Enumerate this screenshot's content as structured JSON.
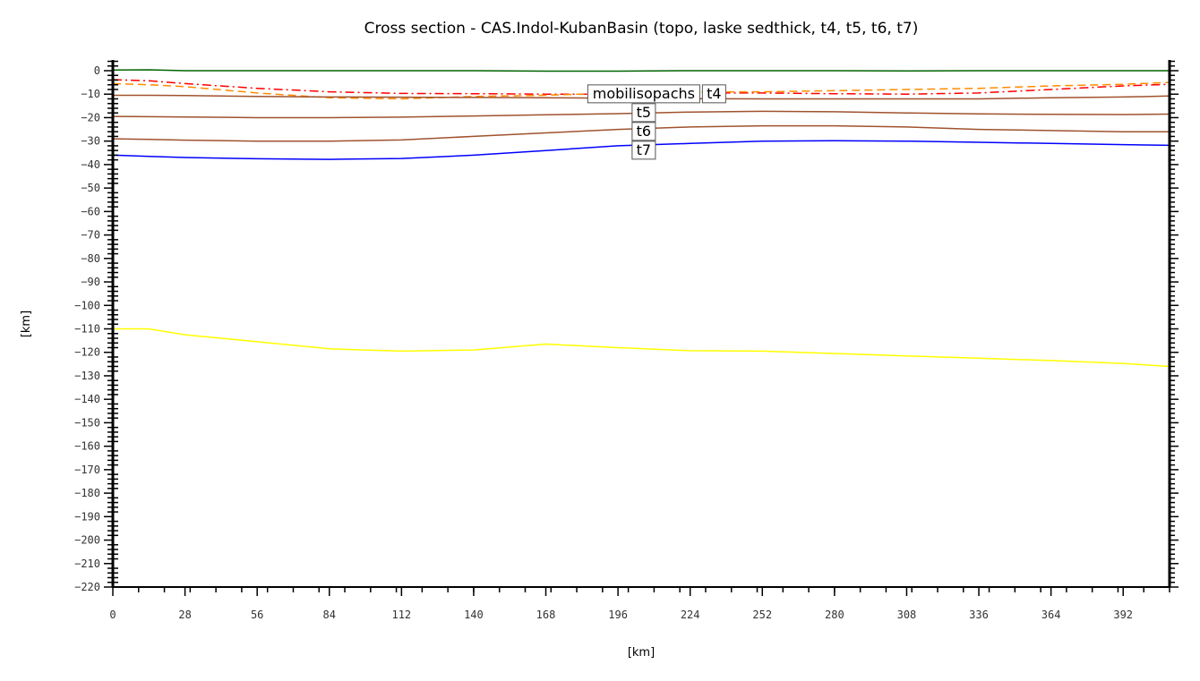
{
  "chart_data": {
    "type": "line",
    "title": "Cross section - CAS.Indol-KubanBasin (topo, laske sedthick, t4, t5, t6, t7)",
    "xlabel": "[km]",
    "ylabel": "[km]",
    "xlim": [
      0,
      410
    ],
    "ylim": [
      -220,
      0
    ],
    "xticks": [
      0,
      28,
      56,
      84,
      112,
      140,
      168,
      196,
      224,
      252,
      280,
      308,
      336,
      364,
      392
    ],
    "yticks": [
      0,
      -10,
      -20,
      -30,
      -40,
      -50,
      -60,
      -70,
      -80,
      -90,
      -100,
      -110,
      -120,
      -130,
      -140,
      -150,
      -160,
      -170,
      -180,
      -190,
      -200,
      -210,
      -220
    ],
    "grid": false,
    "x": [
      0,
      14,
      28,
      56,
      84,
      112,
      140,
      168,
      196,
      224,
      252,
      280,
      308,
      336,
      364,
      392,
      410
    ],
    "series": [
      {
        "color": "#006400",
        "style": "solid",
        "values": [
          0.3,
          0.4,
          0,
          0,
          0,
          0,
          0,
          -0.2,
          -0.2,
          0,
          0,
          0,
          -0.1,
          0,
          0,
          0,
          0
        ]
      },
      {
        "color": "#ff0000",
        "style": "dashdot",
        "values": [
          -3.8,
          -4.3,
          -5.5,
          -7.5,
          -9,
          -9.7,
          -9.8,
          -10,
          -10,
          -9.5,
          -9.5,
          -9.8,
          -10,
          -9.5,
          -8,
          -6.5,
          -5.8
        ]
      },
      {
        "color": "#ff8c00",
        "style": "dashed",
        "values": [
          -5.5,
          -6,
          -6.8,
          -9.5,
          -11.5,
          -12,
          -11,
          -10.5,
          -9.5,
          -9,
          -9,
          -8.5,
          -8,
          -7.5,
          -6.5,
          -5.8,
          -5
        ]
      },
      {
        "color": "#a0522d",
        "style": "solid",
        "values": [
          -10.5,
          -10.5,
          -10.6,
          -11,
          -11.2,
          -11.3,
          -11.4,
          -11.5,
          -11.7,
          -11.9,
          -12,
          -12,
          -12,
          -12,
          -11.5,
          -11.2,
          -10.8
        ]
      },
      {
        "color": "#a0522d",
        "style": "solid",
        "values": [
          -19.5,
          -19.6,
          -19.7,
          -20,
          -20,
          -19.8,
          -19.3,
          -18.8,
          -18.3,
          -17.6,
          -17.3,
          -17.5,
          -18,
          -18.4,
          -18.6,
          -18.7,
          -18.5
        ]
      },
      {
        "color": "#a0522d",
        "style": "solid",
        "values": [
          -29,
          -29.3,
          -29.6,
          -30,
          -30,
          -29.5,
          -28,
          -26.5,
          -25,
          -24,
          -23.5,
          -23.5,
          -24,
          -25,
          -25.5,
          -26,
          -26
        ]
      },
      {
        "color": "#0000ff",
        "style": "solid",
        "values": [
          -36,
          -36.5,
          -37,
          -37.5,
          -37.8,
          -37.4,
          -36,
          -34,
          -32,
          -31,
          -30,
          -29.8,
          -30,
          -30.5,
          -31,
          -31.5,
          -31.8
        ]
      },
      {
        "color": "#ffff00",
        "style": "solid",
        "values": [
          -110,
          -110,
          -112.5,
          -115.5,
          -118.5,
          -119.5,
          -119,
          -116.5,
          -118,
          -119.3,
          -119.5,
          -120.5,
          -121.5,
          -122.5,
          -123.5,
          -124.7,
          -126
        ]
      }
    ],
    "annotations": [
      {
        "text": "mobilisopachs",
        "x": 206,
        "y": -11
      },
      {
        "text": "t4",
        "x": 206,
        "y": -11
      },
      {
        "text": "t5",
        "x": 206,
        "y": -18
      },
      {
        "text": "t6",
        "x": 206,
        "y": -25
      },
      {
        "text": "t7",
        "x": 206,
        "y": -32
      }
    ]
  }
}
